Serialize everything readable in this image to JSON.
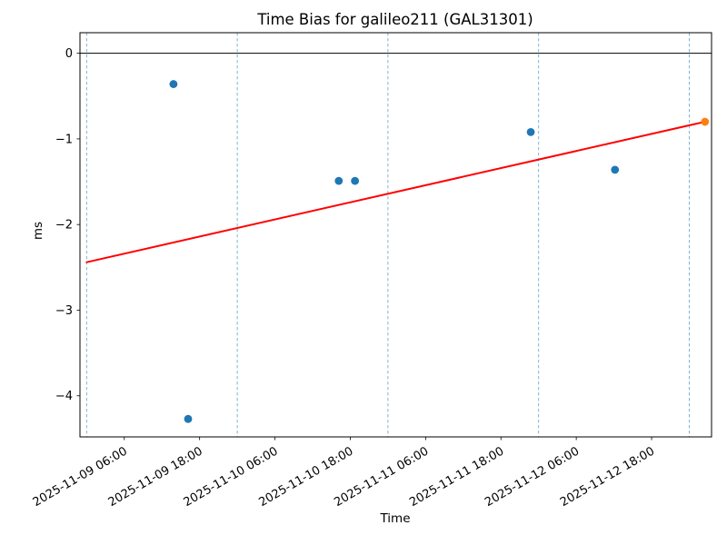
{
  "figure": {
    "title": "Time Bias for galileo211 (GAL31301)",
    "xlabel": "Time",
    "ylabel": "ms",
    "background": "#ffffff"
  },
  "chart_data": {
    "type": "scatter",
    "title": "Time Bias for galileo211 (GAL31301)",
    "xlabel": "Time",
    "ylabel": "ms",
    "time_origin": "2025-11-09 00:00",
    "xlim_hours": [
      -1.06,
      99.55
    ],
    "ylim": [
      -4.48,
      0.24
    ],
    "grid": "vertical-day-lines-only",
    "legend": "none",
    "y_ticks": [
      {
        "value": 0,
        "label": "0"
      },
      {
        "value": -1,
        "label": "−1"
      },
      {
        "value": -2,
        "label": "−2"
      },
      {
        "value": -3,
        "label": "−3"
      },
      {
        "value": -4,
        "label": "−4"
      }
    ],
    "x_ticks": [
      {
        "time": "2025-11-09 06:00",
        "label": "2025-11-09 06:00"
      },
      {
        "time": "2025-11-09 18:00",
        "label": "2025-11-09 18:00"
      },
      {
        "time": "2025-11-10 06:00",
        "label": "2025-11-10 06:00"
      },
      {
        "time": "2025-11-10 18:00",
        "label": "2025-11-10 18:00"
      },
      {
        "time": "2025-11-11 06:00",
        "label": "2025-11-11 06:00"
      },
      {
        "time": "2025-11-11 18:00",
        "label": "2025-11-11 18:00"
      },
      {
        "time": "2025-11-12 06:00",
        "label": "2025-11-12 06:00"
      },
      {
        "time": "2025-11-12 18:00",
        "label": "2025-11-12 18:00"
      }
    ],
    "day_gridlines": [
      "2025-11-09 00:00",
      "2025-11-10 00:00",
      "2025-11-11 00:00",
      "2025-11-12 00:00",
      "2025-11-13 00:00"
    ],
    "zero_line": {
      "value": 0,
      "color": "#000000"
    },
    "series": [
      {
        "name": "bias_measurements",
        "marker": "circle",
        "color": "#1f77b4",
        "points": [
          {
            "t": "2025-11-09 13:50",
            "y": -0.36
          },
          {
            "t": "2025-11-09 16:10",
            "y": -4.27
          },
          {
            "t": "2025-11-10 16:10",
            "y": -1.49
          },
          {
            "t": "2025-11-10 18:45",
            "y": -1.49
          },
          {
            "t": "2025-11-11 22:45",
            "y": -0.92
          },
          {
            "t": "2025-11-12 12:10",
            "y": -1.36
          }
        ]
      },
      {
        "name": "latest_measurement",
        "marker": "circle",
        "color": "#ff7f0e",
        "points": [
          {
            "t": "2025-11-13 02:30",
            "y": -0.8
          }
        ]
      }
    ],
    "trend_line": {
      "color": "#ff0000",
      "width": 2,
      "from": {
        "t": "2025-11-09 00:00",
        "y": -2.44
      },
      "to": {
        "t": "2025-11-13 02:30",
        "y": -0.8
      }
    },
    "colors": {
      "day_gridline": "#72abce",
      "spine": "#000000",
      "tick": "#000000"
    },
    "marker_radius": 4.4
  }
}
